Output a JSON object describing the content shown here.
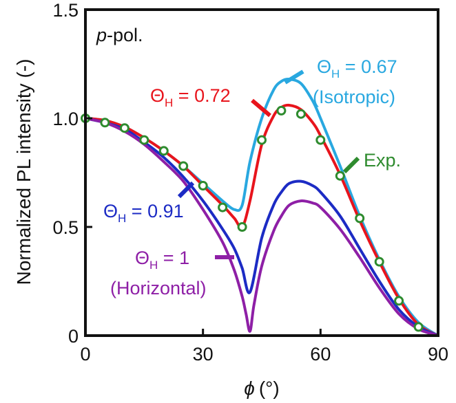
{
  "chart_data": {
    "type": "line",
    "title": "",
    "xlabel_symbol": "ϕ",
    "xlabel_unit": "(°)",
    "ylabel": "Normalized PL intensity (-)",
    "xlim": [
      0,
      90
    ],
    "ylim": [
      0,
      1.5
    ],
    "x_ticks": [
      "0",
      "30",
      "60",
      "90"
    ],
    "y_ticks": [
      "0",
      "0.5",
      "1.0",
      "1.5"
    ],
    "x_tick_values": [
      0,
      30,
      60,
      90
    ],
    "y_tick_values": [
      0,
      0.5,
      1.0,
      1.5
    ],
    "grid": false,
    "panel_label": "-pol.",
    "panel_label_italic": "p",
    "series": [
      {
        "kind": "line",
        "color": "#29a8e0",
        "x": [
          0,
          5,
          10,
          15,
          20,
          25,
          30,
          35,
          38,
          40,
          42,
          45,
          48,
          50,
          52,
          55,
          58,
          60,
          65,
          70,
          75,
          80,
          85,
          90
        ],
        "y": [
          1.0,
          0.99,
          0.96,
          0.91,
          0.85,
          0.78,
          0.7,
          0.62,
          0.58,
          0.6,
          0.8,
          1.0,
          1.13,
          1.17,
          1.18,
          1.16,
          1.08,
          1.0,
          0.78,
          0.55,
          0.35,
          0.18,
          0.06,
          0.0
        ]
      },
      {
        "kind": "line",
        "color": "#e8141c",
        "x": [
          0,
          5,
          10,
          15,
          20,
          25,
          30,
          35,
          38,
          40,
          42,
          45,
          48,
          50,
          52,
          55,
          58,
          60,
          65,
          70,
          75,
          80,
          85,
          90
        ],
        "y": [
          1.0,
          0.99,
          0.96,
          0.91,
          0.85,
          0.78,
          0.69,
          0.6,
          0.54,
          0.5,
          0.62,
          0.88,
          1.01,
          1.05,
          1.06,
          1.04,
          0.98,
          0.92,
          0.74,
          0.53,
          0.34,
          0.17,
          0.05,
          0.0
        ]
      },
      {
        "kind": "line",
        "color": "#1c2bc4",
        "x": [
          0,
          5,
          10,
          15,
          20,
          25,
          30,
          35,
          38,
          40,
          42,
          45,
          48,
          50,
          52,
          55,
          58,
          60,
          65,
          70,
          75,
          80,
          85,
          90
        ],
        "y": [
          1.0,
          0.98,
          0.95,
          0.89,
          0.82,
          0.73,
          0.62,
          0.49,
          0.4,
          0.31,
          0.2,
          0.45,
          0.6,
          0.66,
          0.7,
          0.71,
          0.69,
          0.66,
          0.55,
          0.4,
          0.25,
          0.12,
          0.04,
          0.0
        ]
      },
      {
        "kind": "line",
        "color": "#8e1fa6",
        "x": [
          0,
          5,
          10,
          15,
          20,
          25,
          30,
          35,
          38,
          40,
          41,
          42,
          43,
          45,
          48,
          50,
          52,
          55,
          58,
          60,
          65,
          70,
          75,
          80,
          85,
          90
        ],
        "y": [
          1.0,
          0.98,
          0.94,
          0.88,
          0.8,
          0.71,
          0.58,
          0.43,
          0.3,
          0.18,
          0.1,
          0.02,
          0.14,
          0.32,
          0.48,
          0.55,
          0.6,
          0.62,
          0.61,
          0.59,
          0.49,
          0.36,
          0.22,
          0.1,
          0.03,
          0.0
        ]
      },
      {
        "kind": "scatter",
        "color": "#2e8b2e",
        "x": [
          0,
          5,
          10,
          15,
          20,
          25,
          30,
          35,
          40,
          45,
          50,
          55,
          60,
          65,
          70,
          75,
          80,
          85
        ],
        "y": [
          1.0,
          0.98,
          0.955,
          0.9,
          0.85,
          0.78,
          0.69,
          0.59,
          0.5,
          0.9,
          1.035,
          1.02,
          0.9,
          0.735,
          0.54,
          0.34,
          0.16,
          0.04
        ]
      }
    ],
    "annotations": [
      {
        "id": "isotropic",
        "color": "#29a8e0",
        "line1_pre": "Θ",
        "line1_sub": "H",
        "line1_post": " = 0.67",
        "line2": "(Isotropic)"
      },
      {
        "id": "red",
        "color": "#e8141c",
        "line1_pre": "Θ",
        "line1_sub": "H",
        "line1_post": " = 0.72"
      },
      {
        "id": "exp",
        "color": "#2e8b2e",
        "line1_pre": "Exp."
      },
      {
        "id": "blue",
        "color": "#1c2bc4",
        "line1_pre": "Θ",
        "line1_sub": "H",
        "line1_post": " = 0.91"
      },
      {
        "id": "horizontal",
        "color": "#8e1fa6",
        "line1_pre": "Θ",
        "line1_sub": "H",
        "line1_post": " = 1",
        "line2": "(Horizontal)"
      }
    ]
  }
}
